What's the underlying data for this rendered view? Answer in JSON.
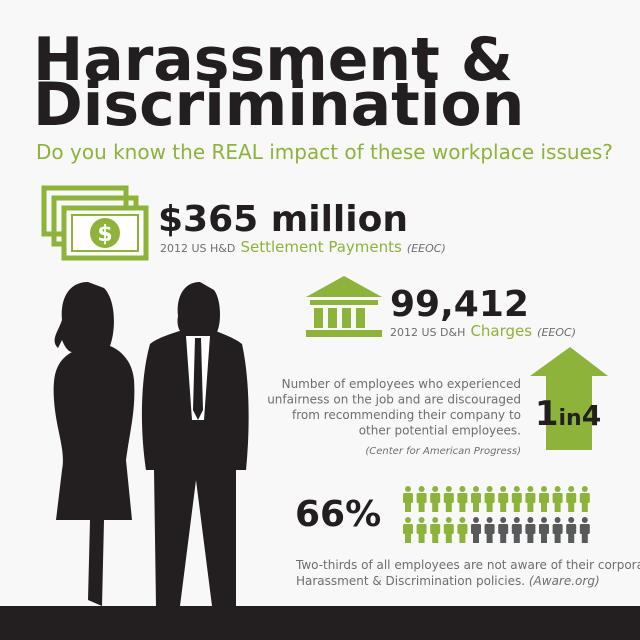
{
  "header": {
    "title_lines": [
      "Harassment &",
      "Discrimination"
    ],
    "subtitle": "Do you know the REAL impact of these workplace issues?"
  },
  "settlement": {
    "figure": "$365 million",
    "prefix": "2012 US H&D",
    "label": "Settlement Payments",
    "source": "(EEOC)"
  },
  "charges": {
    "figure": "99,412",
    "prefix": "2012 US D&H",
    "label": "Charges",
    "source": "(EEOC)"
  },
  "discouraged": {
    "lines": [
      "Number of employees who experienced",
      "unfairness on the job and are discouraged",
      "from recommending their company to",
      "other potential employees."
    ],
    "source": "(Center for American Progress)",
    "ratio": [
      "1",
      "in",
      "4"
    ]
  },
  "unaware": {
    "figure": "66%",
    "lines": [
      "Two-thirds of all employees are not aware of their corporate",
      "Harassment & Discrimination policies."
    ],
    "source": "(Aware.org)"
  }
}
